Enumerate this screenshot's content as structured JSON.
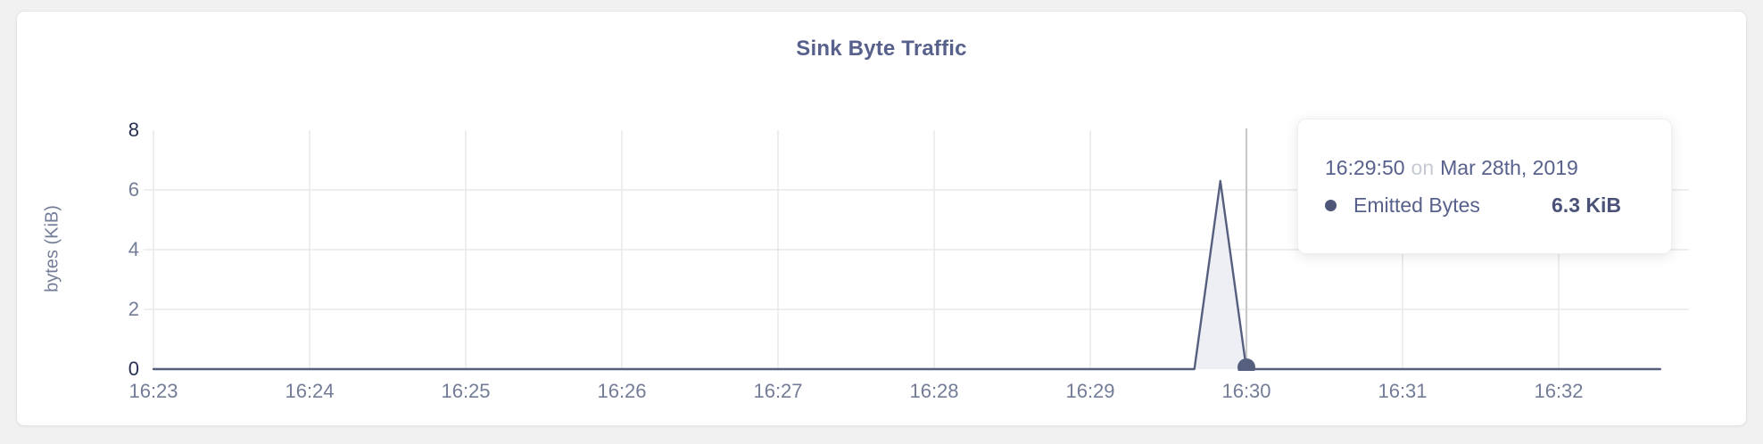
{
  "card": {
    "title": "Sink Byte Traffic"
  },
  "chart_data": {
    "type": "area",
    "title": "Sink Byte Traffic",
    "xlabel": "",
    "ylabel": "bytes (KiB)",
    "ylim": [
      0,
      8
    ],
    "yticks": [
      0,
      2,
      4,
      6,
      8
    ],
    "xticks": [
      "16:23",
      "16:24",
      "16:25",
      "16:26",
      "16:27",
      "16:28",
      "16:29",
      "16:30",
      "16:31",
      "16:32"
    ],
    "x_start": "16:23:00",
    "x_end": "16:32:39",
    "grid": true,
    "legend_position": "none",
    "series": [
      {
        "name": "Emitted Bytes",
        "points": [
          [
            "16:23:00",
            0
          ],
          [
            "16:29:40",
            0
          ],
          [
            "16:29:50",
            6.3
          ],
          [
            "16:30:00",
            0
          ],
          [
            "16:32:39",
            0
          ]
        ]
      }
    ],
    "hover": {
      "time": "16:30:00",
      "point_value": 0,
      "crosshair": true
    }
  },
  "tooltip": {
    "time": "16:29:50",
    "preposition": "on",
    "date": "Mar 28th, 2019",
    "series_label": "Emitted Bytes",
    "value": "6.3 KiB"
  },
  "colors": {
    "page_bg": "#f1f1f2",
    "card_bg": "#ffffff",
    "card_border": "#e5e5e7",
    "title": "#57618b",
    "tick_label": "#747d97",
    "tick_label_dark": "#272f51",
    "gridline": "#e9e9eb",
    "crosshair": "#c9c9cb",
    "series_line": "#565f7e",
    "series_fill": "#edeff5",
    "tooltip_text": "#57618b",
    "tooltip_muted": "#c6cad3",
    "tooltip_value": "#4a5377"
  }
}
